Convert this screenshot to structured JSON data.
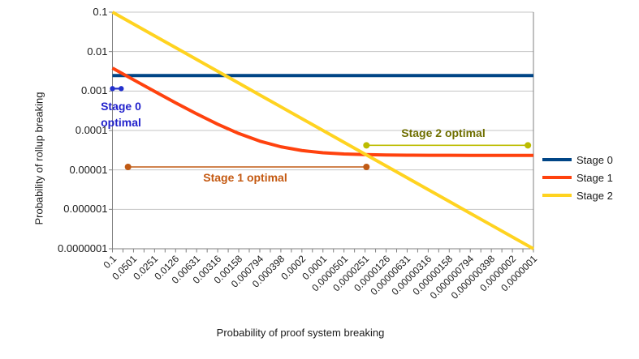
{
  "chart_data": {
    "type": "line",
    "x_scale": "log",
    "y_scale": "log",
    "x_reversed": true,
    "xlim": [
      0.1,
      1e-07
    ],
    "ylim": [
      0.1,
      1e-07
    ],
    "grid": "horizontal-only",
    "legend_position": "right",
    "xlabel": "Probability of proof system breaking",
    "ylabel": "Probability of rollup breaking",
    "y_tick_labels": [
      "0.1",
      "0.01",
      "0.001",
      "0.0001",
      "0.00001",
      "0.000001",
      "0.0000001"
    ],
    "x_tick_labels": [
      "0.1",
      "0.0501",
      "0.0251",
      "0.0126",
      "0.00631",
      "0.00316",
      "0.00158",
      "0.000794",
      "0.000398",
      "0.0002",
      "0.0001",
      "0.0000501",
      "0.0000251",
      "0.0000126",
      "0.00000631",
      "0.00000316",
      "0.00000158",
      "0.000000794",
      "0.000000398",
      "0.0000002",
      "0.0000001"
    ],
    "x": [
      0.1,
      0.0501,
      0.0251,
      0.0126,
      0.00631,
      0.00316,
      0.00158,
      0.000794,
      0.000398,
      0.0002,
      0.0001,
      5.01e-05,
      2.51e-05,
      1.26e-05,
      6.31e-06,
      3.16e-06,
      1.58e-06,
      7.94e-07,
      3.98e-07,
      2e-07,
      1e-07
    ],
    "series": [
      {
        "name": "Stage 0",
        "color": "#004586",
        "values": [
          0.00247,
          0.00247,
          0.00247,
          0.00247,
          0.00247,
          0.00247,
          0.00247,
          0.00247,
          0.00247,
          0.00247,
          0.00247,
          0.00247,
          0.00247,
          0.00247,
          0.00247,
          0.00247,
          0.00247,
          0.00247,
          0.00247,
          0.00247,
          0.00247
        ]
      },
      {
        "name": "Stage 1",
        "color": "#FF420E",
        "values": [
          0.00383,
          0.00193,
          0.00098,
          0.000503,
          0.000264,
          0.000144,
          8.36e-05,
          5.37e-05,
          3.86e-05,
          3.1e-05,
          2.72e-05,
          2.53e-05,
          2.44e-05,
          2.39e-05,
          2.36e-05,
          2.35e-05,
          2.35e-05,
          2.34e-05,
          2.34e-05,
          2.34e-05,
          2.34e-05
        ]
      },
      {
        "name": "Stage 2",
        "color": "#FFD320",
        "values": [
          0.1,
          0.0501,
          0.0251,
          0.0126,
          0.00631,
          0.00316,
          0.00158,
          0.000794,
          0.000398,
          0.0002,
          0.0001,
          5.01e-05,
          2.51e-05,
          1.26e-05,
          6.31e-06,
          3.16e-06,
          1.58e-06,
          7.94e-07,
          3.98e-07,
          2e-07,
          1e-07
        ]
      }
    ],
    "annotations": [
      {
        "label": "Stage 0 optimal",
        "label_lines": [
          "Stage 0",
          "optimal"
        ],
        "x_from": 0.1,
        "x_to": 0.075,
        "y": 0.00115,
        "color": "#2230CC",
        "text_color": "#2222CC"
      },
      {
        "label": "Stage 1 optimal",
        "x_from": 0.06,
        "x_to": 2.4e-05,
        "y": 1.19e-05,
        "color": "#C05A14",
        "text_color": "#C45911"
      },
      {
        "label": "Stage 2 optimal",
        "x_from": 2.4e-05,
        "x_to": 1.2e-07,
        "y": 4.2e-05,
        "color": "#BCBC00",
        "text_color": "#6F6F00"
      }
    ],
    "axis_color": "#808080",
    "gridline_color": "#c6c6c6"
  }
}
